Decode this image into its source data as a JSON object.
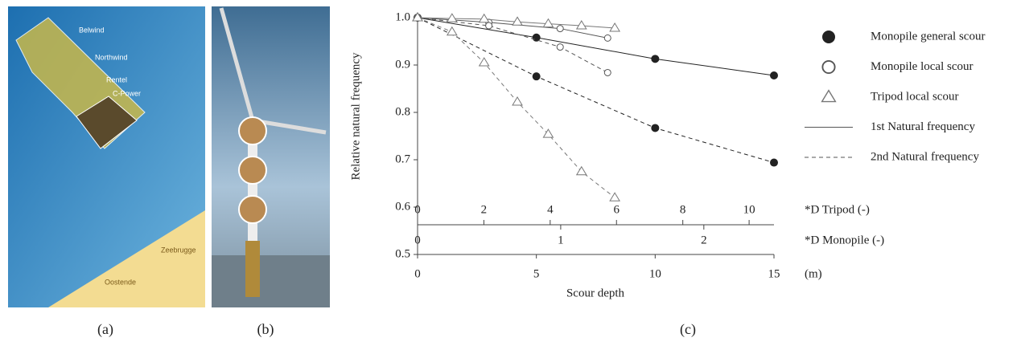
{
  "panels": {
    "a": {
      "label": "(a)",
      "places": [
        "Belwind",
        "Northwind",
        "Rentel",
        "C-Power",
        "Zeebrugge",
        "Oostende"
      ]
    },
    "b": {
      "label": "(b)"
    }
  },
  "chart_data": {
    "type": "line",
    "label": "(c)",
    "xlabel": "Scour depth",
    "ylabel": "Relative natural frequency",
    "x_unit_label": "(m)",
    "xlim": [
      0,
      15
    ],
    "xticks": [
      0,
      5,
      10,
      15
    ],
    "ylim": [
      0.5,
      1.0
    ],
    "yticks": [
      0.5,
      0.6,
      0.7,
      0.8,
      0.9,
      {
        "value": 1.0,
        "label": "1.0"
      }
    ],
    "x2": {
      "label": "*D Tripod (-)",
      "xlim": [
        0,
        10.75
      ],
      "xticks": [
        0,
        2,
        4,
        6,
        8,
        10
      ]
    },
    "x3": {
      "label": "*D Monopile (-)",
      "xlim": [
        0,
        2.49
      ],
      "xticks": [
        0,
        1,
        2
      ]
    },
    "line_styles": [
      {
        "name": "1st Natural frequency",
        "dash": "solid"
      },
      {
        "name": "2nd Natural frequency",
        "dash": "dashed"
      }
    ],
    "series": [
      {
        "name": "Monopile general scour",
        "marker": "filled-circle",
        "color": "#222222",
        "modes": [
          {
            "x": [
              0,
              5,
              10,
              15
            ],
            "values": [
              1.0,
              0.958,
              0.913,
              0.878
            ]
          },
          {
            "x": [
              0,
              5,
              10,
              15
            ],
            "values": [
              1.0,
              0.876,
              0.767,
              0.694
            ]
          }
        ]
      },
      {
        "name": "Monopile local scour",
        "marker": "open-circle",
        "color": "#555555",
        "modes": [
          {
            "x": [
              0,
              3,
              6,
              8
            ],
            "values": [
              1.0,
              0.99,
              0.977,
              0.957
            ]
          },
          {
            "x": [
              0,
              3,
              6,
              8
            ],
            "values": [
              1.0,
              0.983,
              0.938,
              0.884
            ]
          }
        ]
      },
      {
        "name": "Tripod local scour",
        "marker": "open-triangle",
        "color": "#777777",
        "modes": [
          {
            "x": [
              0,
              1.45,
              2.8,
              4.2,
              5.5,
              6.9,
              8.3
            ],
            "values": [
              1.0,
              0.998,
              0.997,
              0.991,
              0.987,
              0.983,
              0.978
            ]
          },
          {
            "x": [
              0,
              1.45,
              2.8,
              4.2,
              5.5,
              6.9,
              8.3
            ],
            "values": [
              1.0,
              0.97,
              0.905,
              0.822,
              0.754,
              0.675,
              0.62
            ]
          }
        ]
      }
    ]
  }
}
